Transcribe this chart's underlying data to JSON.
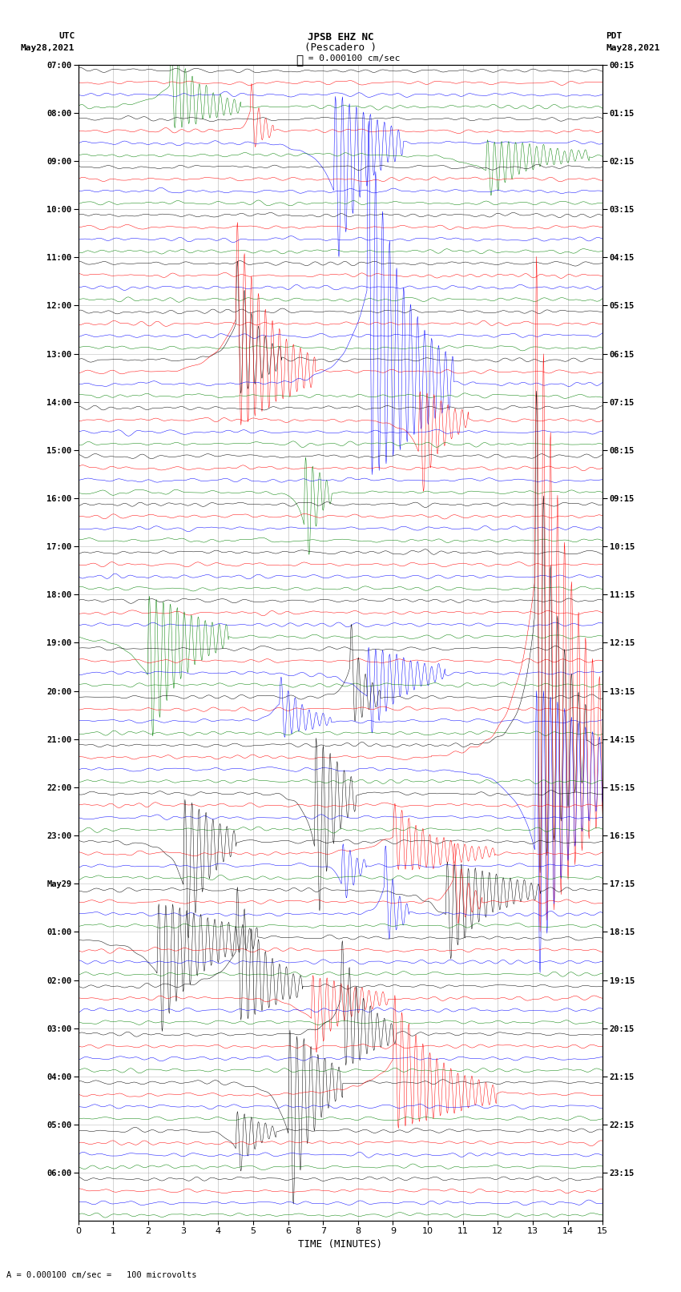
{
  "title_line1": "JPSB EHZ NC",
  "title_line2": "(Pescadero )",
  "scale_label": "= 0.000100 cm/sec",
  "bottom_text": "= 0.000100 cm/sec =   100 microvolts",
  "xlabel": "TIME (MINUTES)",
  "left_label_top": "UTC",
  "left_label_date": "May28,2021",
  "right_label_top": "PDT",
  "right_label_date": "May28,2021",
  "utc_times": [
    "07:00",
    "08:00",
    "09:00",
    "10:00",
    "11:00",
    "12:00",
    "13:00",
    "14:00",
    "15:00",
    "16:00",
    "17:00",
    "18:00",
    "19:00",
    "20:00",
    "21:00",
    "22:00",
    "23:00",
    "May29",
    "01:00",
    "02:00",
    "03:00",
    "04:00",
    "05:00",
    "06:00"
  ],
  "pdt_times": [
    "00:15",
    "01:15",
    "02:15",
    "03:15",
    "04:15",
    "05:15",
    "06:15",
    "07:15",
    "08:15",
    "09:15",
    "10:15",
    "11:15",
    "12:15",
    "13:15",
    "14:15",
    "15:15",
    "16:15",
    "17:15",
    "18:15",
    "19:15",
    "20:15",
    "21:15",
    "22:15",
    "23:15"
  ],
  "trace_colors": [
    "black",
    "red",
    "blue",
    "green"
  ],
  "num_hour_blocks": 24,
  "traces_per_block": 4,
  "noise_amplitude": 0.08,
  "background_color": "white",
  "fig_width": 8.5,
  "fig_height": 16.13,
  "dpi": 100,
  "xmin": 0,
  "xmax": 15,
  "seed": 42
}
